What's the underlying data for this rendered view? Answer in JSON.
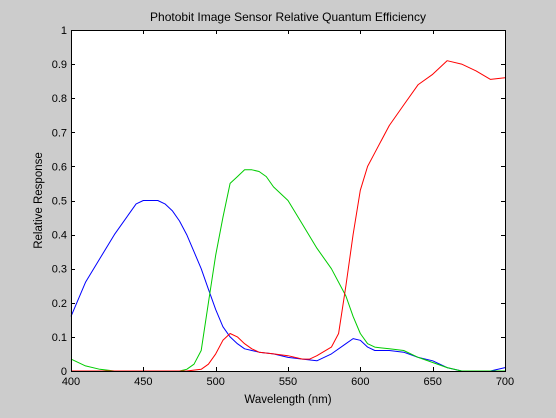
{
  "colors": {
    "figure_background": "#cccccc",
    "axes_background": "#ffffff",
    "axes_line": "#000000"
  },
  "chart_data": {
    "type": "line",
    "title": "Photobit Image Sensor Relative Quantum Efficiency",
    "xlabel": "Wavelength (nm)",
    "ylabel": "Relative Response",
    "xlim": [
      400,
      700
    ],
    "ylim": [
      0,
      1
    ],
    "xticks": [
      400,
      450,
      500,
      550,
      600,
      650,
      700
    ],
    "yticks": [
      0,
      0.1,
      0.2,
      0.3,
      0.4,
      0.5,
      0.6,
      0.7,
      0.8,
      0.9,
      1
    ],
    "xtick_labels": [
      "400",
      "450",
      "500",
      "550",
      "600",
      "650",
      "700"
    ],
    "ytick_labels": [
      "0",
      "0.1",
      "0.2",
      "0.3",
      "0.4",
      "0.5",
      "0.6",
      "0.7",
      "0.8",
      "0.9",
      "1"
    ],
    "grid": false,
    "legend": "none",
    "series": [
      {
        "color": "#0000ff",
        "x": [
          400,
          410,
          420,
          430,
          440,
          445,
          450,
          455,
          460,
          465,
          470,
          475,
          480,
          485,
          490,
          495,
          500,
          505,
          510,
          515,
          520,
          525,
          530,
          540,
          550,
          560,
          570,
          580,
          590,
          595,
          600,
          605,
          610,
          620,
          630,
          640,
          650,
          660,
          670,
          680,
          690,
          700
        ],
        "y": [
          0.16,
          0.26,
          0.33,
          0.4,
          0.46,
          0.49,
          0.5,
          0.5,
          0.5,
          0.49,
          0.47,
          0.44,
          0.4,
          0.35,
          0.3,
          0.24,
          0.18,
          0.13,
          0.1,
          0.08,
          0.065,
          0.06,
          0.055,
          0.05,
          0.04,
          0.035,
          0.03,
          0.05,
          0.08,
          0.095,
          0.09,
          0.07,
          0.06,
          0.06,
          0.055,
          0.04,
          0.03,
          0.01,
          0.0,
          0.0,
          0.0,
          0.01
        ]
      },
      {
        "color": "#00cc00",
        "x": [
          400,
          410,
          420,
          430,
          440,
          450,
          460,
          470,
          475,
          480,
          485,
          490,
          495,
          500,
          505,
          510,
          515,
          520,
          525,
          530,
          535,
          540,
          550,
          560,
          570,
          580,
          590,
          595,
          600,
          605,
          610,
          620,
          630,
          640,
          650,
          660,
          670,
          680,
          690,
          700
        ],
        "y": [
          0.035,
          0.015,
          0.005,
          0.0,
          0.0,
          0.0,
          0.0,
          0.0,
          0.0,
          0.005,
          0.02,
          0.06,
          0.2,
          0.34,
          0.45,
          0.55,
          0.57,
          0.59,
          0.59,
          0.585,
          0.57,
          0.54,
          0.5,
          0.43,
          0.36,
          0.3,
          0.22,
          0.16,
          0.11,
          0.08,
          0.07,
          0.065,
          0.06,
          0.04,
          0.025,
          0.01,
          0.0,
          0.0,
          0.0,
          0.0
        ]
      },
      {
        "color": "#ff0000",
        "x": [
          400,
          450,
          480,
          490,
          495,
          500,
          505,
          510,
          515,
          520,
          525,
          530,
          540,
          550,
          560,
          565,
          570,
          580,
          585,
          590,
          595,
          600,
          605,
          610,
          620,
          630,
          640,
          650,
          660,
          670,
          680,
          690,
          700
        ],
        "y": [
          0.0,
          0.0,
          0.0,
          0.005,
          0.02,
          0.05,
          0.09,
          0.11,
          0.1,
          0.08,
          0.065,
          0.055,
          0.05,
          0.045,
          0.035,
          0.035,
          0.045,
          0.07,
          0.11,
          0.25,
          0.4,
          0.53,
          0.6,
          0.64,
          0.72,
          0.78,
          0.84,
          0.87,
          0.91,
          0.9,
          0.88,
          0.855,
          0.86
        ]
      }
    ]
  }
}
